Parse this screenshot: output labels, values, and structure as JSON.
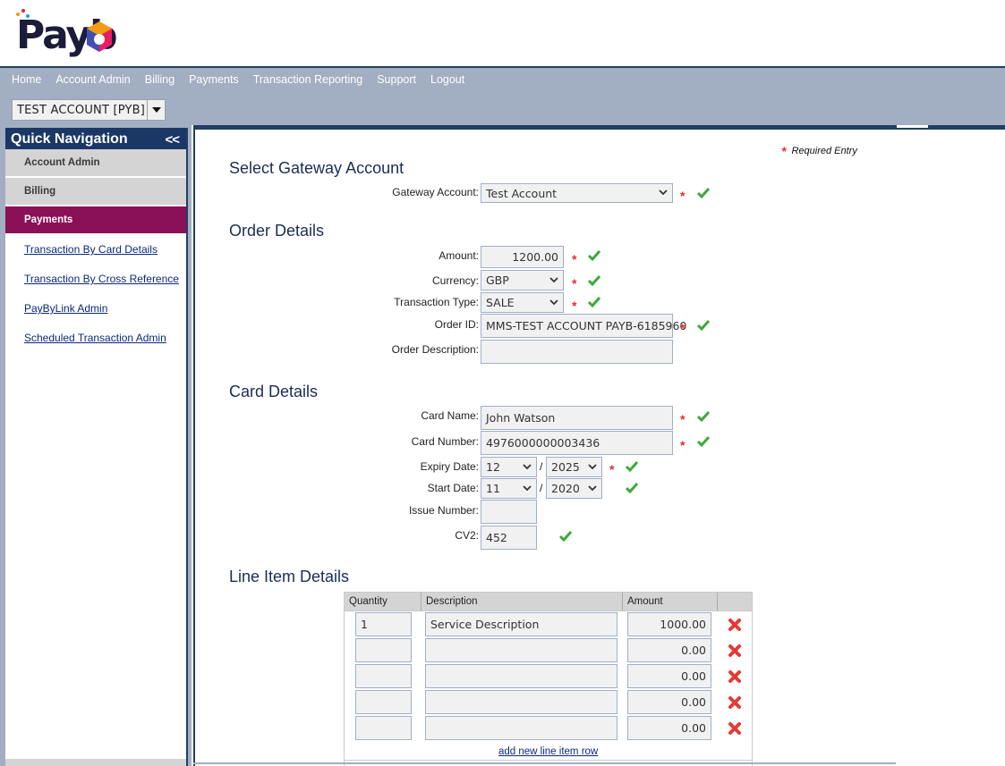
{
  "brand": {
    "logo_text": "Payb"
  },
  "nav": {
    "links": [
      "Home",
      "Account Admin",
      "Billing",
      "Payments",
      "Transaction Reporting",
      "Support",
      "Logout"
    ],
    "account": "TEST ACCOUNT [PYB]"
  },
  "sidebar": {
    "title": "Quick Navigation",
    "collapse": "<<",
    "sections": [
      "Account Admin",
      "Billing",
      "Payments"
    ],
    "links": [
      "Transaction By Card Details",
      "Transaction By Cross Reference",
      "PayByLink Admin",
      "Scheduled Transaction Admin"
    ]
  },
  "legend": {
    "required": "Required Entry"
  },
  "gateway": {
    "title": "Select Gateway Account",
    "label": "Gateway Account:",
    "value": "Test Account"
  },
  "order": {
    "title": "Order Details",
    "amount_label": "Amount:",
    "amount": "1200.00",
    "currency_label": "Currency:",
    "currency": "GBP",
    "type_label": "Transaction Type:",
    "type": "SALE",
    "order_id_label": "Order ID:",
    "order_id": "MMS-TEST ACCOUNT PAYB-6185960",
    "desc_label": "Order Description:",
    "desc": ""
  },
  "card": {
    "title": "Card Details",
    "name_label": "Card Name:",
    "name": "John Watson",
    "number_label": "Card Number:",
    "number": "4976000000003436",
    "expiry_label": "Expiry Date:",
    "expiry_month": "12",
    "expiry_year": "2025",
    "start_label": "Start Date:",
    "start_month": "11",
    "start_year": "2020",
    "separator": "/",
    "issue_label": "Issue Number:",
    "issue": "",
    "cv2_label": "CV2:",
    "cv2": "452"
  },
  "line_items": {
    "title": "Line Item Details",
    "headers": [
      "Quantity",
      "Description",
      "Amount"
    ],
    "rows": [
      {
        "qty": "1",
        "desc": "Service Description",
        "amount": "1000.00"
      },
      {
        "qty": "",
        "desc": "",
        "amount": "0.00"
      },
      {
        "qty": "",
        "desc": "",
        "amount": "0.00"
      },
      {
        "qty": "",
        "desc": "",
        "amount": "0.00"
      },
      {
        "qty": "",
        "desc": "",
        "amount": "0.00"
      }
    ],
    "add_label": "add new line item row"
  },
  "colors": {
    "navy": "#1a3766",
    "nav_bg": "#a2aec1",
    "active": "#8a1057",
    "required": "#e03030",
    "valid": "#3aaa35"
  }
}
